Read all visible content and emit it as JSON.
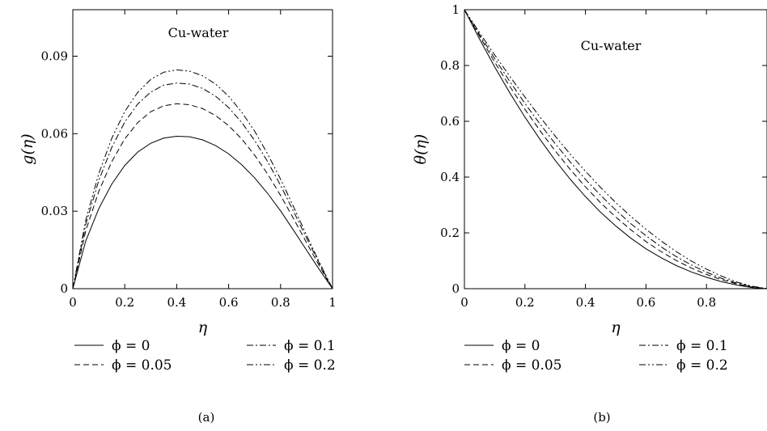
{
  "chart_data": [
    {
      "type": "line",
      "panel_label": "(a)",
      "annotation": "Cu-water",
      "xlabel": "η",
      "ylabel": "g(η)",
      "xlim": [
        0,
        1
      ],
      "ylim": [
        0,
        0.108
      ],
      "x_ticks": [
        0,
        0.2,
        0.4,
        0.6,
        0.8,
        1
      ],
      "x_tick_labels": [
        "0",
        "0.2",
        "0.4",
        "0.6",
        "0.8",
        "1"
      ],
      "y_ticks": [
        0,
        0.03,
        0.06,
        0.09
      ],
      "y_tick_labels": [
        "0",
        "0.03",
        "0.06",
        "0.09"
      ],
      "grid": false,
      "legend_position": "bottom",
      "x": [
        0,
        0.05,
        0.1,
        0.15,
        0.2,
        0.25,
        0.3,
        0.35,
        0.4,
        0.45,
        0.5,
        0.55,
        0.6,
        0.65,
        0.7,
        0.75,
        0.8,
        0.85,
        0.9,
        0.95,
        1
      ],
      "series": [
        {
          "legend_text": "ϕ = 0",
          "style": "solid",
          "values": [
            0,
            0.0185,
            0.031,
            0.0405,
            0.0477,
            0.0529,
            0.0563,
            0.0583,
            0.059,
            0.0588,
            0.0576,
            0.0554,
            0.0522,
            0.048,
            0.0429,
            0.0369,
            0.0301,
            0.0226,
            0.0149,
            0.0073,
            0
          ]
        },
        {
          "legend_text": "ϕ = 0.05",
          "style": "dashed",
          "values": [
            0,
            0.0225,
            0.0377,
            0.0492,
            0.058,
            0.0643,
            0.0685,
            0.0708,
            0.0716,
            0.0712,
            0.0697,
            0.067,
            0.0631,
            0.058,
            0.0517,
            0.0444,
            0.0361,
            0.0271,
            0.0178,
            0.0087,
            0
          ]
        },
        {
          "legend_text": "ϕ = 0.1",
          "style": "dashdot",
          "values": [
            0,
            0.025,
            0.0419,
            0.0547,
            0.0645,
            0.0715,
            0.0761,
            0.0788,
            0.0796,
            0.0792,
            0.0775,
            0.0745,
            0.0701,
            0.0644,
            0.0574,
            0.0492,
            0.04,
            0.0299,
            0.0196,
            0.0096,
            0
          ]
        },
        {
          "legend_text": "ϕ = 0.2",
          "style": "dashdotdot",
          "values": [
            0,
            0.0266,
            0.0446,
            0.0582,
            0.0686,
            0.076,
            0.081,
            0.0838,
            0.0847,
            0.0842,
            0.0824,
            0.0792,
            0.0745,
            0.0684,
            0.061,
            0.0522,
            0.0424,
            0.0317,
            0.0207,
            0.0101,
            0
          ]
        }
      ]
    },
    {
      "type": "line",
      "panel_label": "(b)",
      "annotation": "Cu-water",
      "xlabel": "η",
      "ylabel": "θ(η)",
      "xlim": [
        0,
        1
      ],
      "ylim": [
        0,
        1
      ],
      "x_ticks": [
        0,
        0.2,
        0.4,
        0.6,
        0.8
      ],
      "x_tick_labels": [
        "0",
        "0.2",
        "0.4",
        "0.6",
        "0.8"
      ],
      "y_ticks": [
        0,
        0.2,
        0.4,
        0.6,
        0.8,
        1
      ],
      "y_tick_labels": [
        "0",
        "0.2",
        "0.4",
        "0.6",
        "0.8",
        "1"
      ],
      "grid": false,
      "legend_position": "bottom",
      "x": [
        0,
        0.05,
        0.1,
        0.15,
        0.2,
        0.25,
        0.3,
        0.35,
        0.4,
        0.45,
        0.5,
        0.55,
        0.6,
        0.65,
        0.7,
        0.75,
        0.8,
        0.85,
        0.9,
        0.95,
        1
      ],
      "series": [
        {
          "legend_text": "ϕ = 0",
          "style": "solid",
          "values": [
            1,
            0.895,
            0.795,
            0.702,
            0.615,
            0.535,
            0.46,
            0.392,
            0.33,
            0.274,
            0.225,
            0.181,
            0.143,
            0.111,
            0.083,
            0.06,
            0.041,
            0.025,
            0.013,
            0.004,
            0
          ]
        },
        {
          "legend_text": "ϕ = 0.05",
          "style": "dashed",
          "values": [
            1,
            0.905,
            0.812,
            0.725,
            0.643,
            0.566,
            0.494,
            0.427,
            0.365,
            0.308,
            0.257,
            0.211,
            0.169,
            0.133,
            0.101,
            0.074,
            0.051,
            0.032,
            0.017,
            0.006,
            0
          ]
        },
        {
          "legend_text": "ϕ = 0.1",
          "style": "dashdot",
          "values": [
            1,
            0.911,
            0.825,
            0.743,
            0.664,
            0.59,
            0.52,
            0.454,
            0.392,
            0.335,
            0.282,
            0.233,
            0.19,
            0.15,
            0.115,
            0.085,
            0.059,
            0.037,
            0.02,
            0.007,
            0
          ]
        },
        {
          "legend_text": "ϕ = 0.2",
          "style": "dashdotdot",
          "values": [
            1,
            0.918,
            0.838,
            0.761,
            0.687,
            0.615,
            0.547,
            0.482,
            0.421,
            0.363,
            0.309,
            0.259,
            0.213,
            0.171,
            0.133,
            0.099,
            0.07,
            0.045,
            0.024,
            0.009,
            0
          ]
        }
      ]
    }
  ]
}
